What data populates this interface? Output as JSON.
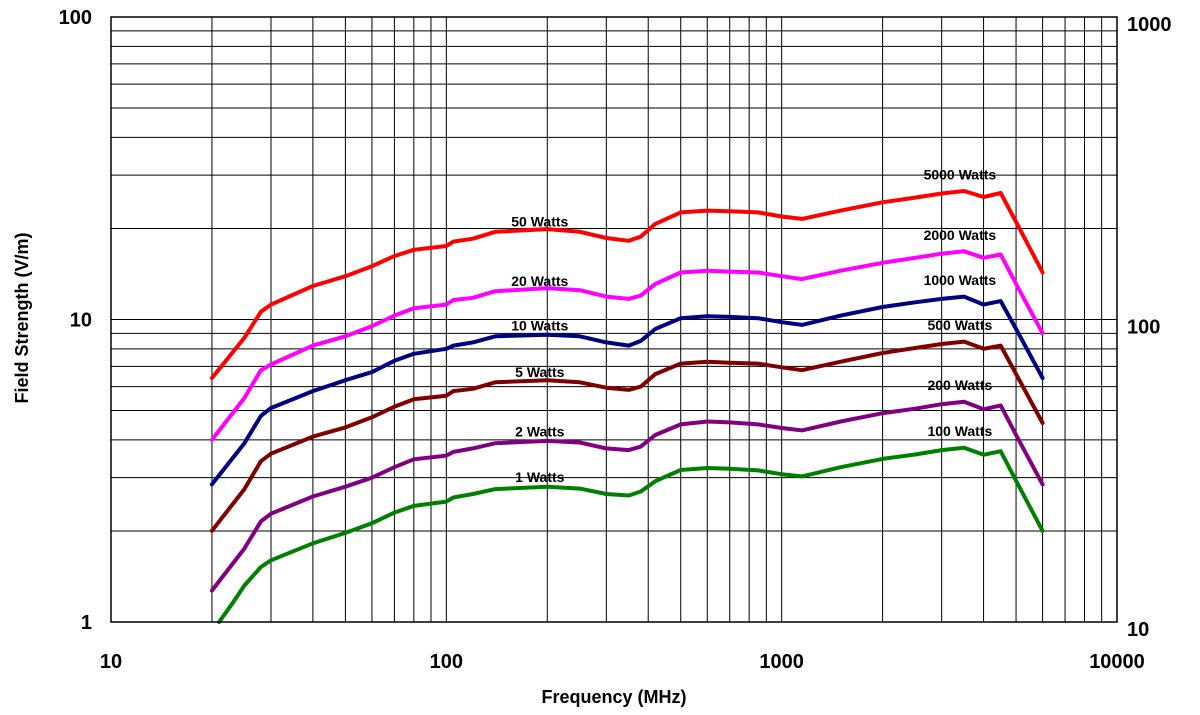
{
  "chart_data": {
    "type": "line",
    "xlabel": "Frequency (MHz)",
    "ylabel": "Field Strength (V/m)",
    "x_scale": "log",
    "y_scale": "log",
    "xlim": [
      10,
      10000
    ],
    "ylim": [
      1,
      100
    ],
    "y2lim": [
      10,
      1000
    ],
    "grid": true,
    "x_ticks": [
      "10",
      "100",
      "1000",
      "10000"
    ],
    "y_ticks": [
      "1",
      "10",
      "100"
    ],
    "y2_ticks": [
      "10",
      "100",
      "1000"
    ],
    "series": [
      {
        "name": "50 Watts",
        "secondary": "5000 Watts",
        "color": "#ff0000",
        "points": [
          [
            20,
            6.4
          ],
          [
            25,
            8.7
          ],
          [
            28,
            10.6
          ],
          [
            30,
            11.2
          ],
          [
            40,
            12.9
          ],
          [
            50,
            13.9
          ],
          [
            60,
            15.0
          ],
          [
            70,
            16.2
          ],
          [
            80,
            17.0
          ],
          [
            100,
            17.5
          ],
          [
            105,
            18.1
          ],
          [
            120,
            18.5
          ],
          [
            140,
            19.5
          ],
          [
            200,
            19.9
          ],
          [
            250,
            19.5
          ],
          [
            300,
            18.6
          ],
          [
            350,
            18.2
          ],
          [
            380,
            18.8
          ],
          [
            420,
            20.7
          ],
          [
            500,
            22.6
          ],
          [
            600,
            22.9
          ],
          [
            700,
            22.8
          ],
          [
            850,
            22.6
          ],
          [
            1000,
            21.9
          ],
          [
            1150,
            21.5
          ],
          [
            1500,
            22.9
          ],
          [
            2000,
            24.4
          ],
          [
            2500,
            25.3
          ],
          [
            3000,
            26.1
          ],
          [
            3500,
            26.6
          ],
          [
            4000,
            25.4
          ],
          [
            4500,
            26.2
          ],
          [
            5000,
            21.0
          ],
          [
            6000,
            14.3
          ]
        ]
      },
      {
        "name": "20 Watts",
        "secondary": "2000 Watts",
        "color": "#ff00ff",
        "points": [
          [
            20,
            4.0
          ],
          [
            25,
            5.5
          ],
          [
            28,
            6.8
          ],
          [
            30,
            7.1
          ],
          [
            40,
            8.2
          ],
          [
            50,
            8.8
          ],
          [
            60,
            9.5
          ],
          [
            70,
            10.3
          ],
          [
            80,
            10.9
          ],
          [
            100,
            11.2
          ],
          [
            105,
            11.6
          ],
          [
            120,
            11.8
          ],
          [
            140,
            12.4
          ],
          [
            200,
            12.7
          ],
          [
            250,
            12.5
          ],
          [
            300,
            11.9
          ],
          [
            350,
            11.7
          ],
          [
            380,
            12.0
          ],
          [
            420,
            13.1
          ],
          [
            500,
            14.3
          ],
          [
            600,
            14.5
          ],
          [
            700,
            14.4
          ],
          [
            850,
            14.3
          ],
          [
            1000,
            13.9
          ],
          [
            1150,
            13.6
          ],
          [
            1500,
            14.5
          ],
          [
            2000,
            15.4
          ],
          [
            2500,
            16.0
          ],
          [
            3000,
            16.5
          ],
          [
            3500,
            16.8
          ],
          [
            4000,
            16.0
          ],
          [
            4500,
            16.4
          ],
          [
            5000,
            13.1
          ],
          [
            6000,
            9.0
          ]
        ]
      },
      {
        "name": "10 Watts",
        "secondary": "1000 Watts",
        "color": "#000080",
        "points": [
          [
            20,
            2.85
          ],
          [
            25,
            3.9
          ],
          [
            28,
            4.8
          ],
          [
            30,
            5.1
          ],
          [
            40,
            5.8
          ],
          [
            50,
            6.3
          ],
          [
            60,
            6.7
          ],
          [
            70,
            7.3
          ],
          [
            80,
            7.7
          ],
          [
            100,
            8.0
          ],
          [
            105,
            8.2
          ],
          [
            120,
            8.4
          ],
          [
            140,
            8.8
          ],
          [
            200,
            8.9
          ],
          [
            250,
            8.8
          ],
          [
            300,
            8.4
          ],
          [
            350,
            8.2
          ],
          [
            380,
            8.5
          ],
          [
            420,
            9.3
          ],
          [
            500,
            10.1
          ],
          [
            600,
            10.25
          ],
          [
            700,
            10.2
          ],
          [
            850,
            10.1
          ],
          [
            1000,
            9.8
          ],
          [
            1150,
            9.6
          ],
          [
            1500,
            10.3
          ],
          [
            2000,
            11.0
          ],
          [
            2500,
            11.4
          ],
          [
            3000,
            11.7
          ],
          [
            3500,
            11.9
          ],
          [
            4000,
            11.2
          ],
          [
            4500,
            11.5
          ],
          [
            5000,
            9.3
          ],
          [
            6000,
            6.4
          ]
        ]
      },
      {
        "name": "5 Watts",
        "secondary": "500 Watts",
        "color": "#800000",
        "points": [
          [
            20,
            2.0
          ],
          [
            25,
            2.75
          ],
          [
            28,
            3.4
          ],
          [
            30,
            3.6
          ],
          [
            40,
            4.1
          ],
          [
            50,
            4.4
          ],
          [
            60,
            4.75
          ],
          [
            70,
            5.15
          ],
          [
            80,
            5.45
          ],
          [
            100,
            5.6
          ],
          [
            105,
            5.8
          ],
          [
            120,
            5.9
          ],
          [
            140,
            6.2
          ],
          [
            200,
            6.3
          ],
          [
            250,
            6.2
          ],
          [
            300,
            5.95
          ],
          [
            350,
            5.85
          ],
          [
            380,
            6.0
          ],
          [
            420,
            6.6
          ],
          [
            500,
            7.15
          ],
          [
            600,
            7.25
          ],
          [
            700,
            7.2
          ],
          [
            850,
            7.15
          ],
          [
            1000,
            6.95
          ],
          [
            1150,
            6.8
          ],
          [
            1500,
            7.25
          ],
          [
            2000,
            7.75
          ],
          [
            2500,
            8.05
          ],
          [
            3000,
            8.3
          ],
          [
            3500,
            8.45
          ],
          [
            4000,
            8.0
          ],
          [
            4500,
            8.2
          ],
          [
            5000,
            6.6
          ],
          [
            6000,
            4.55
          ]
        ]
      },
      {
        "name": "2 Watts",
        "secondary": "200 Watts",
        "color": "#800080",
        "points": [
          [
            20,
            1.27
          ],
          [
            25,
            1.75
          ],
          [
            28,
            2.15
          ],
          [
            30,
            2.28
          ],
          [
            40,
            2.6
          ],
          [
            50,
            2.8
          ],
          [
            60,
            3.0
          ],
          [
            70,
            3.25
          ],
          [
            80,
            3.45
          ],
          [
            100,
            3.55
          ],
          [
            105,
            3.65
          ],
          [
            120,
            3.75
          ],
          [
            140,
            3.9
          ],
          [
            200,
            3.97
          ],
          [
            250,
            3.92
          ],
          [
            300,
            3.75
          ],
          [
            350,
            3.7
          ],
          [
            380,
            3.8
          ],
          [
            420,
            4.15
          ],
          [
            500,
            4.5
          ],
          [
            600,
            4.6
          ],
          [
            700,
            4.57
          ],
          [
            850,
            4.5
          ],
          [
            1000,
            4.38
          ],
          [
            1150,
            4.3
          ],
          [
            1500,
            4.6
          ],
          [
            2000,
            4.9
          ],
          [
            2500,
            5.07
          ],
          [
            3000,
            5.25
          ],
          [
            3500,
            5.35
          ],
          [
            4000,
            5.05
          ],
          [
            4500,
            5.2
          ],
          [
            5000,
            4.15
          ],
          [
            6000,
            2.85
          ]
        ]
      },
      {
        "name": "1 Watts",
        "secondary": "100 Watts",
        "color": "#008000",
        "points": [
          [
            21,
            1.0
          ],
          [
            23,
            1.15
          ],
          [
            25,
            1.32
          ],
          [
            28,
            1.52
          ],
          [
            30,
            1.6
          ],
          [
            40,
            1.82
          ],
          [
            50,
            1.97
          ],
          [
            60,
            2.12
          ],
          [
            70,
            2.3
          ],
          [
            80,
            2.42
          ],
          [
            100,
            2.5
          ],
          [
            105,
            2.58
          ],
          [
            120,
            2.65
          ],
          [
            140,
            2.75
          ],
          [
            200,
            2.8
          ],
          [
            250,
            2.76
          ],
          [
            300,
            2.65
          ],
          [
            350,
            2.62
          ],
          [
            380,
            2.7
          ],
          [
            420,
            2.92
          ],
          [
            500,
            3.18
          ],
          [
            600,
            3.23
          ],
          [
            700,
            3.21
          ],
          [
            850,
            3.17
          ],
          [
            1000,
            3.08
          ],
          [
            1150,
            3.03
          ],
          [
            1500,
            3.25
          ],
          [
            2000,
            3.46
          ],
          [
            2500,
            3.58
          ],
          [
            3000,
            3.7
          ],
          [
            3500,
            3.77
          ],
          [
            4000,
            3.57
          ],
          [
            4500,
            3.67
          ],
          [
            5000,
            2.93
          ],
          [
            6000,
            2.0
          ]
        ]
      }
    ]
  }
}
